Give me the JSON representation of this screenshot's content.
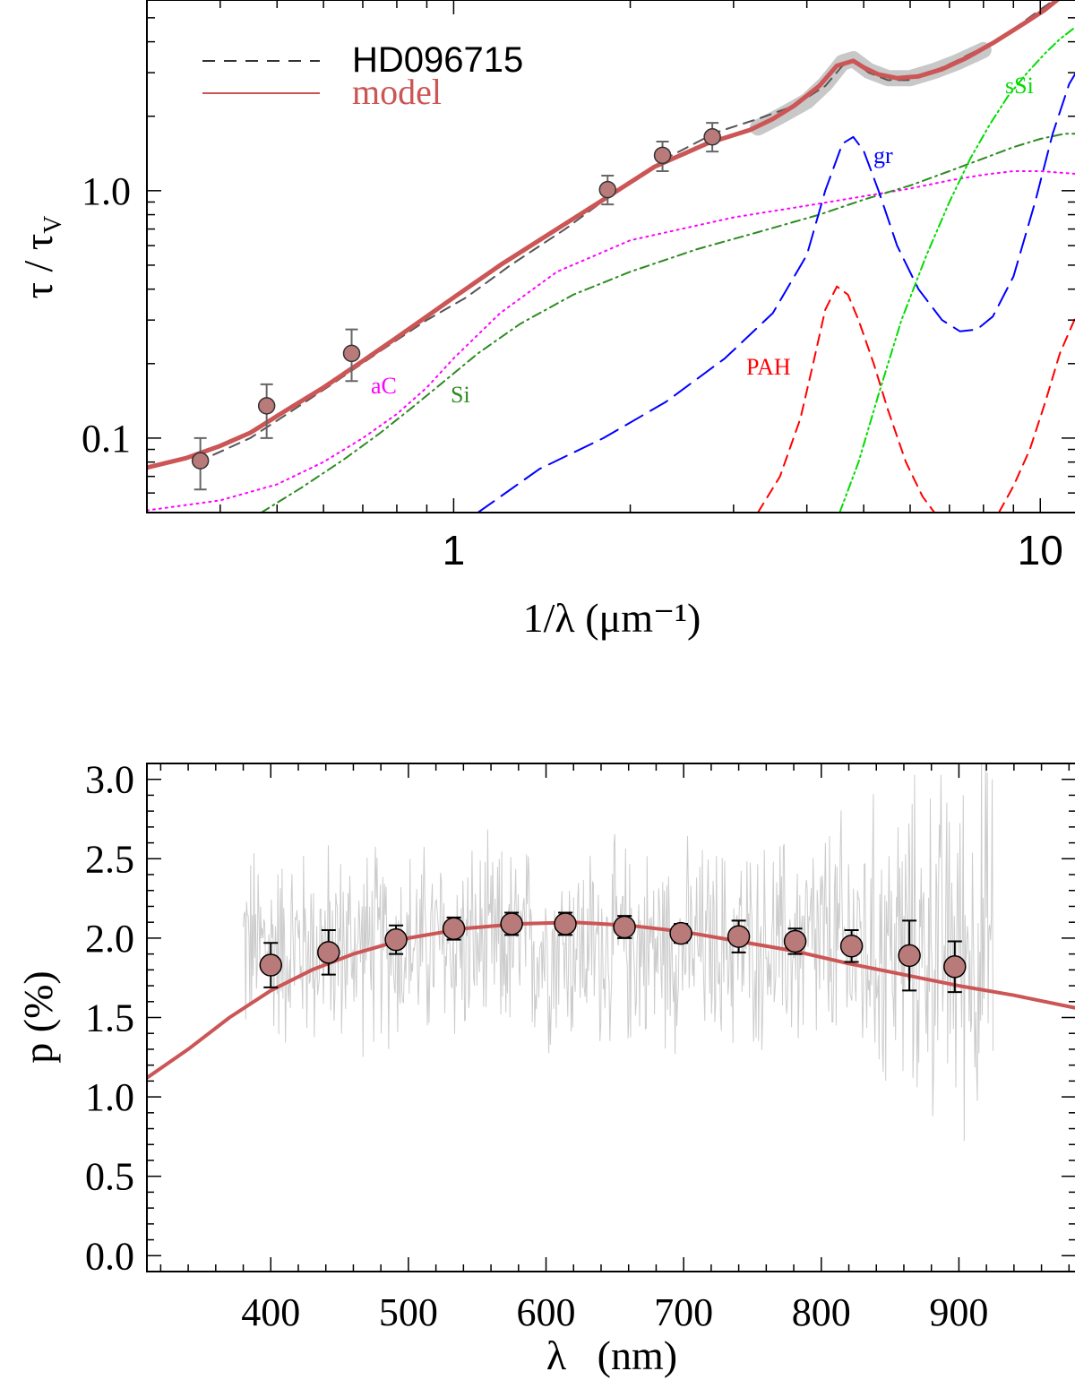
{
  "chart_data": [
    {
      "type": "line",
      "name": "extinction",
      "xscale": "log",
      "yscale": "log",
      "xlim": [
        0.3,
        11.5
      ],
      "ylim": [
        0.05,
        5.9
      ],
      "xlabel": "1/λ (μm⁻¹)",
      "ylabel": "τ / τ",
      "ylabel_sub": "V",
      "xticks": [
        1,
        10
      ],
      "xtick_labels": [
        "1",
        "10"
      ],
      "yticks": [
        0.1,
        1.0
      ],
      "ytick_labels": [
        "0.1",
        "1.0"
      ],
      "legend": [
        {
          "label": "HD096715",
          "style": "dashed",
          "color": "#333333"
        },
        {
          "label": "model",
          "style": "solid",
          "color": "#cc5555"
        }
      ],
      "component_labels": [
        {
          "text": "aC",
          "color": "#ff00ff",
          "x": 0.93,
          "y": 0.2
        },
        {
          "text": "Si",
          "color": "#2e8b22",
          "x": 1.2,
          "y": 0.19
        },
        {
          "text": "PAH",
          "color": "#ff0000",
          "x": 4.1,
          "y": 0.2
        },
        {
          "text": "gr",
          "color": "#0000ff",
          "x": 5.9,
          "y": 1.6
        },
        {
          "text": "sSi",
          "color": "#00dd00",
          "x": 10.3,
          "y": 3.3
        }
      ],
      "series": [
        {
          "name": "observed band",
          "color": "#c8c8c8",
          "style": "band",
          "x": [
            3.3,
            3.6,
            4.0,
            4.3,
            4.6,
            4.8,
            5.1,
            5.5,
            6.0,
            6.6,
            7.2,
            8.0
          ],
          "y": [
            1.8,
            2.0,
            2.3,
            2.7,
            3.3,
            3.4,
            3.05,
            2.85,
            2.85,
            3.05,
            3.3,
            3.7
          ]
        },
        {
          "name": "HD096715",
          "color": "#555555",
          "style": "dashed",
          "x": [
            0.365,
            0.4,
            0.45,
            0.52,
            0.62,
            0.75,
            0.9,
            1.05,
            1.25,
            1.55,
            1.9,
            2.3,
            2.8,
            3.3,
            3.8,
            4.3,
            4.6,
            4.8,
            5.1,
            5.5,
            6.0,
            6.6,
            7.2,
            8.0,
            9.0,
            10.0,
            11.0
          ],
          "y": [
            0.08,
            0.088,
            0.1,
            0.125,
            0.165,
            0.225,
            0.3,
            0.37,
            0.5,
            0.7,
            1.0,
            1.35,
            1.72,
            1.95,
            2.2,
            2.65,
            3.2,
            3.35,
            3.0,
            2.8,
            2.8,
            3.05,
            3.35,
            3.8,
            4.5,
            5.4,
            6.3
          ]
        },
        {
          "name": "model",
          "color": "#cc5555",
          "style": "solid",
          "x": [
            0.3,
            0.35,
            0.4,
            0.45,
            0.52,
            0.6,
            0.7,
            0.8,
            0.9,
            1.0,
            1.2,
            1.5,
            1.8,
            2.2,
            2.7,
            3.2,
            3.5,
            3.8,
            4.2,
            4.5,
            4.8,
            5.0,
            5.3,
            5.7,
            6.2,
            6.8,
            7.5,
            8.3,
            9.2,
            10.2,
            11.5
          ],
          "y": [
            0.076,
            0.083,
            0.093,
            0.105,
            0.13,
            0.16,
            0.205,
            0.255,
            0.31,
            0.37,
            0.5,
            0.7,
            0.92,
            1.25,
            1.55,
            1.76,
            1.95,
            2.2,
            2.65,
            3.2,
            3.35,
            3.15,
            2.95,
            2.85,
            2.9,
            3.1,
            3.45,
            3.95,
            4.6,
            5.4,
            6.8
          ]
        },
        {
          "name": "aC",
          "color": "#ff00ff",
          "style": "dotted",
          "x": [
            0.3,
            0.4,
            0.5,
            0.6,
            0.7,
            0.8,
            0.9,
            1.0,
            1.2,
            1.5,
            2.0,
            3.0,
            4.0,
            5.0,
            6.0,
            7.0,
            8.0,
            9.0,
            10.0,
            11.5
          ],
          "y": [
            0.051,
            0.056,
            0.065,
            0.08,
            0.1,
            0.125,
            0.16,
            0.21,
            0.32,
            0.47,
            0.63,
            0.78,
            0.87,
            0.95,
            1.02,
            1.1,
            1.16,
            1.2,
            1.2,
            1.17
          ]
        },
        {
          "name": "Si",
          "color": "#2e8b22",
          "style": "dashdot",
          "x": [
            0.47,
            0.55,
            0.65,
            0.75,
            0.85,
            0.95,
            1.1,
            1.3,
            1.6,
            2.0,
            2.6,
            3.3,
            4.2,
            5.0,
            6.0,
            7.0,
            8.0,
            9.0,
            10.0,
            11.0,
            11.5
          ],
          "y": [
            0.05,
            0.063,
            0.082,
            0.105,
            0.133,
            0.165,
            0.22,
            0.29,
            0.38,
            0.47,
            0.58,
            0.68,
            0.8,
            0.92,
            1.05,
            1.2,
            1.35,
            1.5,
            1.62,
            1.7,
            1.7
          ]
        },
        {
          "name": "gr",
          "color": "#0000ff",
          "style": "longdash",
          "x": [
            1.1,
            1.4,
            1.8,
            2.3,
            2.9,
            3.5,
            4.0,
            4.3,
            4.6,
            4.8,
            5.0,
            5.3,
            5.7,
            6.2,
            6.8,
            7.3,
            7.8,
            8.3,
            9.0,
            9.8,
            10.5,
            11.2,
            11.5
          ],
          "y": [
            0.05,
            0.075,
            0.1,
            0.14,
            0.21,
            0.32,
            0.55,
            1.0,
            1.55,
            1.65,
            1.45,
            1.0,
            0.6,
            0.4,
            0.3,
            0.27,
            0.275,
            0.31,
            0.45,
            0.9,
            1.7,
            2.7,
            3.0
          ]
        },
        {
          "name": "PAH",
          "color": "#ff0000",
          "style": "dashed",
          "segment": 1,
          "x": [
            3.3,
            3.6,
            3.9,
            4.1,
            4.3,
            4.5,
            4.7,
            4.9,
            5.2,
            5.5,
            5.9,
            6.3,
            6.6
          ],
          "y": [
            0.05,
            0.07,
            0.12,
            0.2,
            0.33,
            0.41,
            0.38,
            0.3,
            0.2,
            0.13,
            0.08,
            0.058,
            0.05
          ]
        },
        {
          "name": "PAH",
          "color": "#ff0000",
          "style": "dashed",
          "segment": 2,
          "x": [
            8.5,
            9.0,
            9.6,
            10.2,
            10.8,
            11.5
          ],
          "y": [
            0.05,
            0.064,
            0.09,
            0.14,
            0.22,
            0.31
          ]
        },
        {
          "name": "sSi",
          "color": "#00dd00",
          "style": "dashdotdot",
          "x": [
            4.55,
            4.9,
            5.3,
            5.8,
            6.4,
            7.0,
            7.6,
            8.2,
            8.8,
            9.5,
            10.2,
            10.8,
            11.5
          ],
          "y": [
            0.05,
            0.08,
            0.15,
            0.3,
            0.55,
            0.9,
            1.35,
            1.85,
            2.4,
            3.0,
            3.6,
            4.1,
            4.6
          ]
        }
      ],
      "points": {
        "name": "HD096715 photometry",
        "color": "#b97a7a",
        "x": [
          0.37,
          0.48,
          0.67,
          1.83,
          2.27,
          2.76
        ],
        "y": [
          0.081,
          0.135,
          0.22,
          1.01,
          1.39,
          1.65
        ],
        "yerr_low": [
          0.062,
          0.1,
          0.17,
          0.88,
          1.2,
          1.44
        ],
        "yerr_high": [
          0.1,
          0.165,
          0.275,
          1.15,
          1.58,
          1.88
        ]
      }
    },
    {
      "type": "line",
      "name": "polarization",
      "xlim": [
        310,
        985
      ],
      "ylim": [
        -0.1,
        3.1
      ],
      "xlabel": "λ   (nm)",
      "ylabel": "p (%)",
      "xticks": [
        400,
        500,
        600,
        700,
        800,
        900
      ],
      "xtick_labels": [
        "400",
        "500",
        "600",
        "700",
        "800",
        "900"
      ],
      "yticks": [
        0.0,
        0.5,
        1.0,
        1.5,
        2.0,
        2.5,
        3.0
      ],
      "ytick_labels": [
        "0.0",
        "0.5",
        "1.0",
        "1.5",
        "2.0",
        "2.5",
        "3.0"
      ],
      "noise_band": {
        "name": "spectropolarimetry",
        "color": "#cccccc",
        "x_range": [
          380,
          925
        ],
        "center": 1.95,
        "spread": 0.55
      },
      "series": [
        {
          "name": "model",
          "color": "#cc5555",
          "style": "solid",
          "x": [
            310,
            340,
            370,
            400,
            430,
            460,
            500,
            540,
            580,
            620,
            660,
            700,
            740,
            780,
            820,
            860,
            900,
            940,
            985
          ],
          "y": [
            1.12,
            1.3,
            1.5,
            1.67,
            1.8,
            1.9,
            2.0,
            2.06,
            2.09,
            2.1,
            2.08,
            2.04,
            1.98,
            1.92,
            1.84,
            1.77,
            1.7,
            1.64,
            1.56
          ]
        }
      ],
      "points": {
        "name": "broadband polarization",
        "color": "#b97a7a",
        "x": [
          400,
          442,
          491,
          533,
          575,
          614,
          657,
          698,
          740,
          781,
          822,
          864,
          897
        ],
        "y": [
          1.83,
          1.91,
          1.99,
          2.06,
          2.09,
          2.09,
          2.07,
          2.03,
          2.01,
          1.98,
          1.95,
          1.89,
          1.82
        ],
        "yerr": [
          0.14,
          0.14,
          0.09,
          0.07,
          0.07,
          0.07,
          0.07,
          0.06,
          0.1,
          0.08,
          0.1,
          0.22,
          0.16
        ]
      }
    }
  ]
}
